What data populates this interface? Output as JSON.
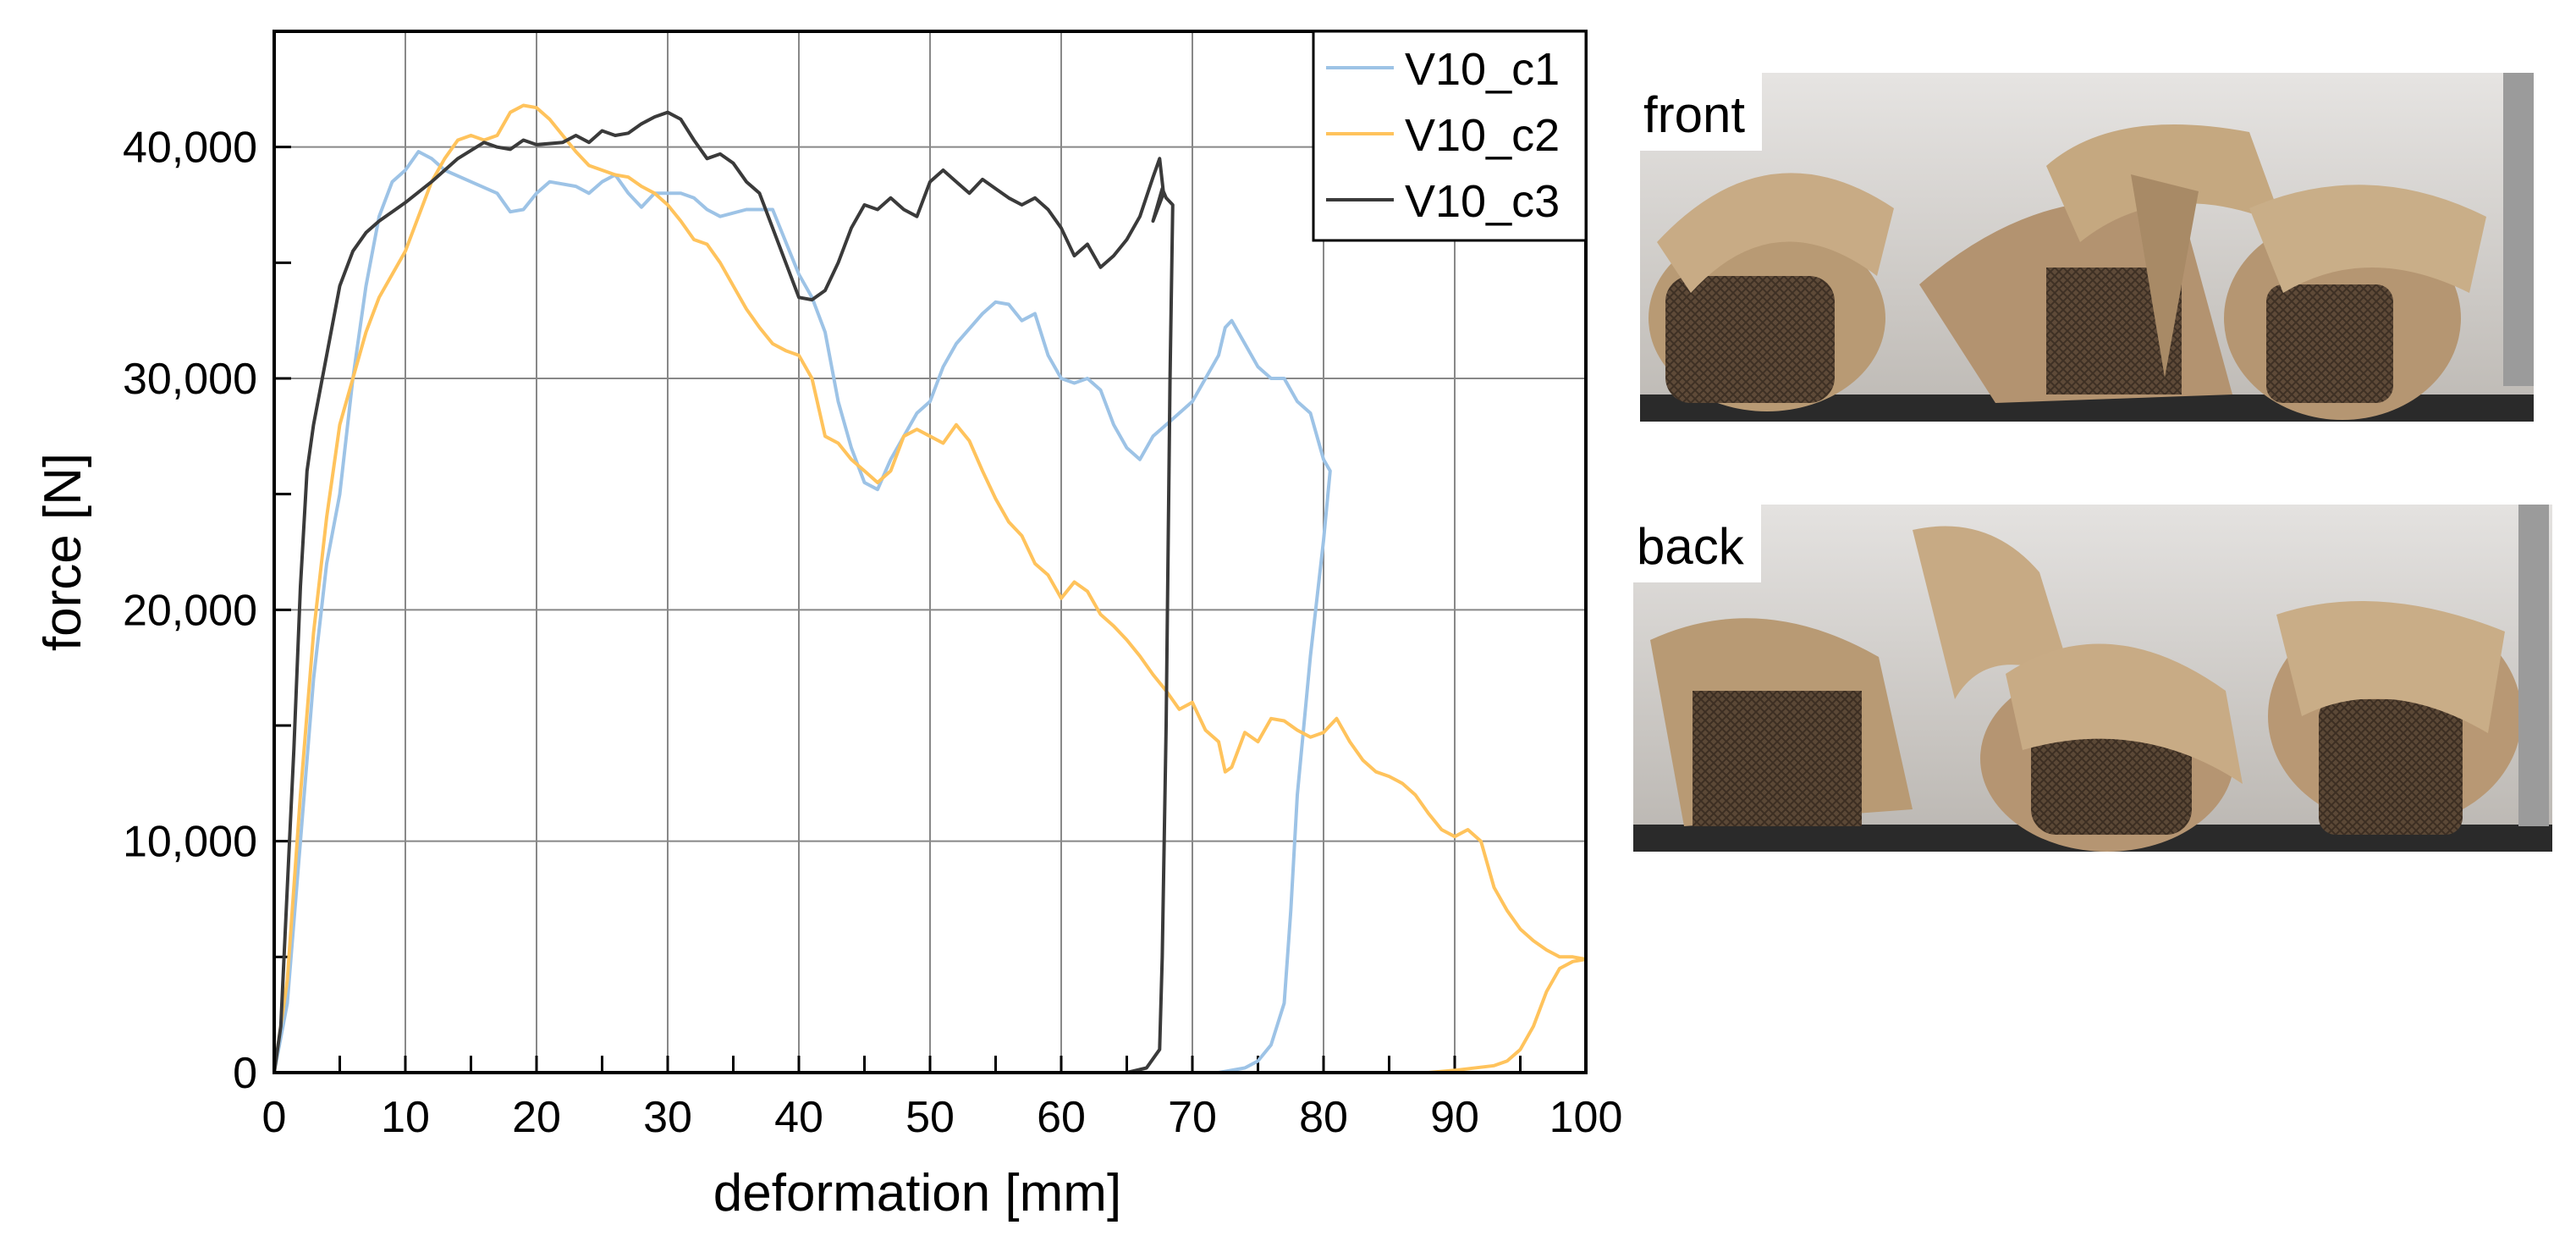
{
  "chart_data": {
    "type": "line",
    "xlabel": "deformation [mm]",
    "ylabel": "force [N]",
    "xlim": [
      0,
      100
    ],
    "ylim": [
      0,
      45000
    ],
    "x_ticks": [
      0,
      10,
      20,
      30,
      40,
      50,
      60,
      70,
      80,
      90,
      100
    ],
    "y_ticks": [
      0,
      10000,
      20000,
      30000,
      40000
    ],
    "x_tick_labels": [
      "0",
      "10",
      "20",
      "30",
      "40",
      "50",
      "60",
      "70",
      "80",
      "90",
      "100"
    ],
    "y_tick_labels": [
      "0",
      "10,000",
      "20,000",
      "30,000",
      "40,000"
    ],
    "grid": true,
    "legend_position": "top-right",
    "series": [
      {
        "name": "V10_c1",
        "color": "#9dc3e6",
        "points": [
          [
            0,
            0
          ],
          [
            1,
            3000
          ],
          [
            2,
            10000
          ],
          [
            3,
            17000
          ],
          [
            4,
            22000
          ],
          [
            5,
            25000
          ],
          [
            6,
            30000
          ],
          [
            7,
            34000
          ],
          [
            8,
            37000
          ],
          [
            9,
            38500
          ],
          [
            10,
            39000
          ],
          [
            11,
            39800
          ],
          [
            12,
            39500
          ],
          [
            13,
            39000
          ],
          [
            15,
            38500
          ],
          [
            17,
            38000
          ],
          [
            18,
            37200
          ],
          [
            19,
            37300
          ],
          [
            20,
            38000
          ],
          [
            21,
            38500
          ],
          [
            23,
            38300
          ],
          [
            24,
            38000
          ],
          [
            25,
            38500
          ],
          [
            26,
            38800
          ],
          [
            27,
            38000
          ],
          [
            28,
            37400
          ],
          [
            29,
            38000
          ],
          [
            31,
            38000
          ],
          [
            32,
            37800
          ],
          [
            33,
            37300
          ],
          [
            34,
            37000
          ],
          [
            36,
            37300
          ],
          [
            38,
            37300
          ],
          [
            40,
            34500
          ],
          [
            41,
            33500
          ],
          [
            42,
            32000
          ],
          [
            43,
            29000
          ],
          [
            44,
            27000
          ],
          [
            45,
            25500
          ],
          [
            46,
            25200
          ],
          [
            47,
            26500
          ],
          [
            48,
            27500
          ],
          [
            49,
            28500
          ],
          [
            50,
            29000
          ],
          [
            51,
            30500
          ],
          [
            52,
            31500
          ],
          [
            54,
            32800
          ],
          [
            55,
            33300
          ],
          [
            56,
            33200
          ],
          [
            57,
            32500
          ],
          [
            58,
            32800
          ],
          [
            59,
            31000
          ],
          [
            60,
            30000
          ],
          [
            61,
            29800
          ],
          [
            62,
            30000
          ],
          [
            63,
            29500
          ],
          [
            64,
            28000
          ],
          [
            65,
            27000
          ],
          [
            66,
            26500
          ],
          [
            67,
            27500
          ],
          [
            68,
            28000
          ],
          [
            69,
            28500
          ],
          [
            70,
            29000
          ],
          [
            71,
            30000
          ],
          [
            72,
            31000
          ],
          [
            72.5,
            32200
          ],
          [
            73,
            32500
          ],
          [
            74,
            31500
          ],
          [
            75,
            30500
          ],
          [
            76,
            30000
          ],
          [
            77,
            30000
          ],
          [
            78,
            29000
          ],
          [
            79,
            28500
          ],
          [
            80,
            26500
          ],
          [
            80.5,
            26000
          ],
          [
            80,
            23000
          ],
          [
            79,
            18000
          ],
          [
            78,
            12000
          ],
          [
            77.5,
            7000
          ],
          [
            77,
            3000
          ],
          [
            76,
            1200
          ],
          [
            75,
            500
          ],
          [
            74,
            200
          ],
          [
            72,
            0
          ],
          [
            70,
            0
          ],
          [
            69,
            0
          ]
        ]
      },
      {
        "name": "V10_c2",
        "color": "#ffc35c",
        "points": [
          [
            0,
            0
          ],
          [
            1,
            4000
          ],
          [
            2,
            12000
          ],
          [
            3,
            19000
          ],
          [
            4,
            24000
          ],
          [
            5,
            28000
          ],
          [
            6,
            30000
          ],
          [
            7,
            32000
          ],
          [
            8,
            33500
          ],
          [
            9,
            34500
          ],
          [
            10,
            35500
          ],
          [
            11,
            37000
          ],
          [
            12,
            38500
          ],
          [
            13,
            39500
          ],
          [
            14,
            40300
          ],
          [
            15,
            40500
          ],
          [
            16,
            40300
          ],
          [
            17,
            40500
          ],
          [
            18,
            41500
          ],
          [
            19,
            41800
          ],
          [
            20,
            41700
          ],
          [
            21,
            41200
          ],
          [
            22,
            40500
          ],
          [
            23,
            39800
          ],
          [
            24,
            39200
          ],
          [
            25,
            39000
          ],
          [
            26,
            38800
          ],
          [
            27,
            38700
          ],
          [
            28,
            38300
          ],
          [
            29,
            38000
          ],
          [
            30,
            37500
          ],
          [
            31,
            36800
          ],
          [
            32,
            36000
          ],
          [
            33,
            35800
          ],
          [
            34,
            35000
          ],
          [
            35,
            34000
          ],
          [
            36,
            33000
          ],
          [
            37,
            32200
          ],
          [
            38,
            31500
          ],
          [
            39,
            31200
          ],
          [
            40,
            31000
          ],
          [
            41,
            30000
          ],
          [
            42,
            27500
          ],
          [
            43,
            27200
          ],
          [
            44,
            26500
          ],
          [
            45,
            26000
          ],
          [
            46,
            25500
          ],
          [
            47,
            26000
          ],
          [
            48,
            27500
          ],
          [
            49,
            27800
          ],
          [
            50,
            27500
          ],
          [
            51,
            27200
          ],
          [
            52,
            28000
          ],
          [
            53,
            27300
          ],
          [
            54,
            26000
          ],
          [
            55,
            24800
          ],
          [
            56,
            23800
          ],
          [
            57,
            23200
          ],
          [
            58,
            22000
          ],
          [
            59,
            21500
          ],
          [
            60,
            20500
          ],
          [
            61,
            21200
          ],
          [
            62,
            20800
          ],
          [
            63,
            19800
          ],
          [
            64,
            19300
          ],
          [
            65,
            18700
          ],
          [
            66,
            18000
          ],
          [
            67,
            17200
          ],
          [
            68,
            16500
          ],
          [
            69,
            15700
          ],
          [
            70,
            16000
          ],
          [
            71,
            14800
          ],
          [
            72,
            14300
          ],
          [
            72.5,
            13000
          ],
          [
            73,
            13200
          ],
          [
            74,
            14700
          ],
          [
            75,
            14300
          ],
          [
            76,
            15300
          ],
          [
            77,
            15200
          ],
          [
            78,
            14800
          ],
          [
            79,
            14500
          ],
          [
            80,
            14700
          ],
          [
            81,
            15300
          ],
          [
            82,
            14300
          ],
          [
            83,
            13500
          ],
          [
            84,
            13000
          ],
          [
            85,
            12800
          ],
          [
            86,
            12500
          ],
          [
            87,
            12000
          ],
          [
            88,
            11200
          ],
          [
            89,
            10500
          ],
          [
            90,
            10200
          ],
          [
            91,
            10500
          ],
          [
            92,
            10000
          ],
          [
            93,
            8000
          ],
          [
            94,
            7000
          ],
          [
            95,
            6200
          ],
          [
            96,
            5700
          ],
          [
            97,
            5300
          ],
          [
            98,
            5000
          ],
          [
            99,
            5000
          ],
          [
            100,
            4900
          ],
          [
            99,
            4800
          ],
          [
            98,
            4500
          ],
          [
            97,
            3500
          ],
          [
            96,
            2000
          ],
          [
            95,
            1000
          ],
          [
            94,
            500
          ],
          [
            93,
            300
          ],
          [
            90,
            100
          ],
          [
            88,
            0
          ],
          [
            86,
            0
          ]
        ]
      },
      {
        "name": "V10_c3",
        "color": "#3a3a3a",
        "points": [
          [
            0,
            0
          ],
          [
            0.5,
            2000
          ],
          [
            1,
            8000
          ],
          [
            1.5,
            14000
          ],
          [
            2,
            21000
          ],
          [
            2.5,
            26000
          ],
          [
            3,
            28000
          ],
          [
            4,
            31000
          ],
          [
            5,
            34000
          ],
          [
            6,
            35500
          ],
          [
            7,
            36300
          ],
          [
            8,
            36800
          ],
          [
            9,
            37200
          ],
          [
            10,
            37600
          ],
          [
            12,
            38500
          ],
          [
            14,
            39500
          ],
          [
            16,
            40200
          ],
          [
            17,
            40000
          ],
          [
            18,
            39900
          ],
          [
            19,
            40300
          ],
          [
            20,
            40100
          ],
          [
            22,
            40200
          ],
          [
            23,
            40500
          ],
          [
            24,
            40200
          ],
          [
            25,
            40700
          ],
          [
            26,
            40500
          ],
          [
            27,
            40600
          ],
          [
            28,
            41000
          ],
          [
            29,
            41300
          ],
          [
            30,
            41500
          ],
          [
            31,
            41200
          ],
          [
            32,
            40300
          ],
          [
            33,
            39500
          ],
          [
            34,
            39700
          ],
          [
            35,
            39300
          ],
          [
            36,
            38500
          ],
          [
            37,
            38000
          ],
          [
            38,
            36500
          ],
          [
            39,
            35000
          ],
          [
            40,
            33500
          ],
          [
            41,
            33400
          ],
          [
            42,
            33800
          ],
          [
            43,
            35000
          ],
          [
            44,
            36500
          ],
          [
            45,
            37500
          ],
          [
            46,
            37300
          ],
          [
            47,
            37800
          ],
          [
            48,
            37300
          ],
          [
            49,
            37000
          ],
          [
            50,
            38500
          ],
          [
            51,
            39000
          ],
          [
            52,
            38500
          ],
          [
            53,
            38000
          ],
          [
            54,
            38600
          ],
          [
            55,
            38200
          ],
          [
            56,
            37800
          ],
          [
            57,
            37500
          ],
          [
            58,
            37800
          ],
          [
            59,
            37300
          ],
          [
            60,
            36500
          ],
          [
            61,
            35300
          ],
          [
            62,
            35800
          ],
          [
            63,
            34800
          ],
          [
            64,
            35300
          ],
          [
            65,
            36000
          ],
          [
            66,
            37000
          ],
          [
            67,
            38700
          ],
          [
            67.5,
            39500
          ],
          [
            67.8,
            38000
          ],
          [
            67,
            36800
          ],
          [
            67.7,
            38200
          ],
          [
            68,
            37800
          ],
          [
            68.5,
            37500
          ],
          [
            68.3,
            30000
          ],
          [
            68,
            15000
          ],
          [
            67.7,
            5000
          ],
          [
            67.5,
            1000
          ],
          [
            66.5,
            200
          ],
          [
            65,
            0
          ]
        ]
      }
    ]
  },
  "photos": {
    "front_label": "front",
    "back_label": "back"
  }
}
